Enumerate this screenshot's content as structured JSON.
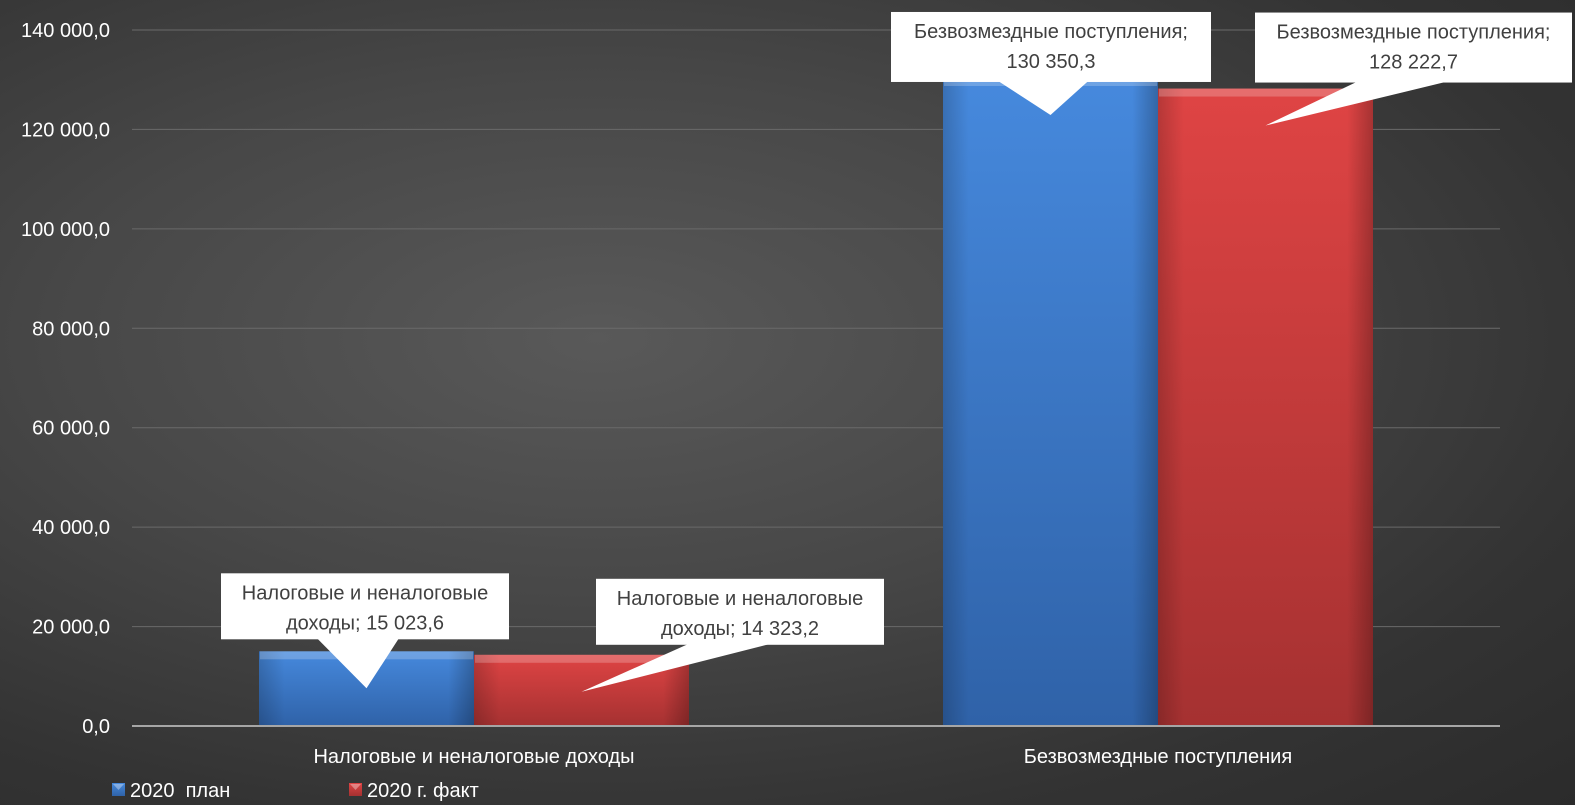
{
  "chart_data": {
    "type": "bar",
    "categories": [
      "Налоговые и неналоговые доходы",
      "Безвозмездные поступления"
    ],
    "series": [
      {
        "name": "2020  план",
        "color": "#3a7fd5",
        "values": [
          15023.6,
          130350.3
        ],
        "labels": [
          [
            "Налоговые и неналоговые",
            "доходы; 15 023,6"
          ],
          [
            "Безвозмездные поступления;",
            "130 350,3"
          ]
        ]
      },
      {
        "name": "2020 г. факт",
        "color": "#d23c3c",
        "values": [
          14323.2,
          128222.7
        ],
        "labels": [
          [
            "Налоговые и неналоговые",
            "доходы; 14 323,2"
          ],
          [
            "Безвозмездные поступления;",
            "128 222,7"
          ]
        ]
      }
    ],
    "ylim": [
      0,
      140000
    ],
    "y_ticks": [
      0,
      20000,
      40000,
      60000,
      80000,
      100000,
      120000,
      140000
    ],
    "y_tick_labels": [
      "0,0",
      "20 000,0",
      "40 000,0",
      "60 000,0",
      "80 000,0",
      "100 000,0",
      "120 000,0",
      "140 000,0"
    ],
    "grid": true,
    "legend_position": "bottom-left"
  }
}
